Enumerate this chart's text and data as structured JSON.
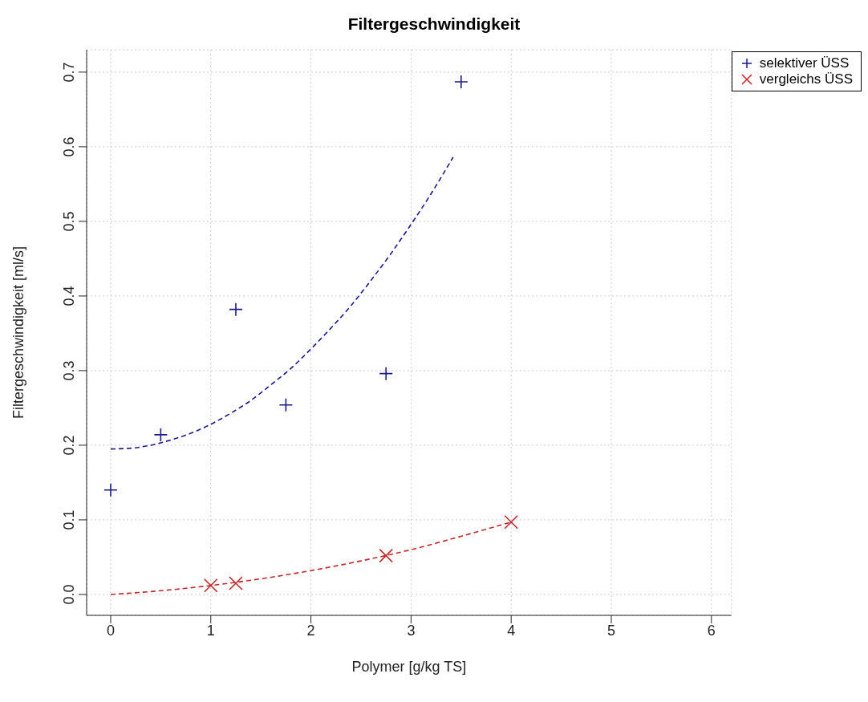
{
  "chart_data": {
    "type": "scatter",
    "title": "Filtergeschwindigkeit",
    "xlabel": "Polymer [g/kg TS]",
    "ylabel": "Filtergeschwindigkeit [ml/s]",
    "xlim": [
      -0.24,
      6.2
    ],
    "ylim": [
      -0.028,
      0.73
    ],
    "xticks": [
      0,
      1,
      2,
      3,
      4,
      5,
      6
    ],
    "yticks": [
      {
        "value": 0,
        "label": "0.0"
      },
      {
        "value": 0.1,
        "label": "0.1"
      },
      {
        "value": 0.2,
        "label": "0.2"
      },
      {
        "value": 0.3,
        "label": "0.3"
      },
      {
        "value": 0.4,
        "label": "0.4"
      },
      {
        "value": 0.5,
        "label": "0.5"
      },
      {
        "value": 0.6,
        "label": "0.6"
      },
      {
        "value": 0.7,
        "label": "0.7"
      }
    ],
    "grid": true,
    "legend": "top right",
    "series": [
      {
        "name": "selektiver ÜSS",
        "color": "#1a1a8c",
        "marker": "plus",
        "x": [
          0,
          0.5,
          1.25,
          1.75,
          2.75,
          3.5
        ],
        "values": [
          0.14,
          0.214,
          0.382,
          0.254,
          0.296,
          0.687
        ]
      },
      {
        "name": "vergleichs ÜSS",
        "color": "#c0282b",
        "marker": "cross",
        "x": [
          1,
          1.25,
          2.75,
          4
        ],
        "values": [
          0.012,
          0.015,
          0.052,
          0.097
        ]
      },
      {
        "type": "line",
        "color": "#1a1a8c",
        "line_style": "dashed",
        "x": [
          0,
          0.2,
          0.4,
          0.6,
          0.8,
          1,
          1.2,
          1.4,
          1.6,
          1.8,
          2,
          2.2,
          2.4,
          2.6,
          2.8,
          3,
          3.2,
          3.42
        ],
        "values": [
          0.195,
          0.196,
          0.2,
          0.207,
          0.216,
          0.228,
          0.243,
          0.26,
          0.281,
          0.303,
          0.329,
          0.357,
          0.387,
          0.421,
          0.457,
          0.496,
          0.537,
          0.586
        ]
      },
      {
        "type": "line",
        "color": "#c0282b",
        "line_style": "dashed",
        "x": [
          0,
          0.5,
          1,
          1.5,
          2,
          2.5,
          3,
          3.5,
          4
        ],
        "values": [
          0,
          0.005,
          0.012,
          0.021,
          0.032,
          0.045,
          0.06,
          0.078,
          0.097
        ]
      }
    ]
  }
}
